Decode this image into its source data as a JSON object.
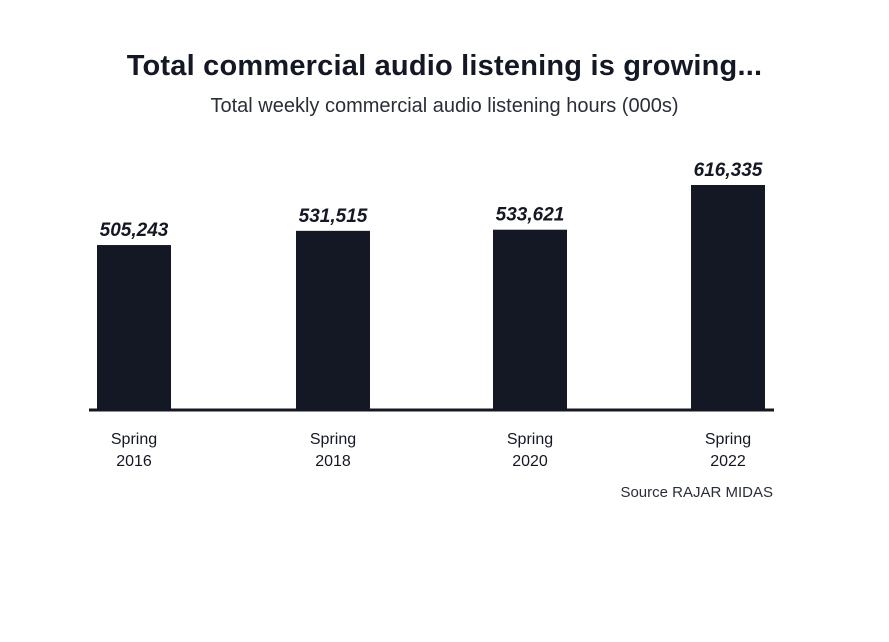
{
  "chart_data": {
    "type": "bar",
    "title": "Total commercial audio listening is growing...",
    "subtitle": "Total weekly commercial audio listening hours (000s)",
    "categories": [
      [
        "Spring",
        "2016"
      ],
      [
        "Spring",
        "2018"
      ],
      [
        "Spring",
        "2020"
      ],
      [
        "Spring",
        "2022"
      ]
    ],
    "values": [
      505243,
      531515,
      533621,
      616335
    ],
    "value_labels": [
      "505,243",
      "531,515",
      "533,621",
      "616,335"
    ],
    "source": "Source RAJAR MIDAS",
    "colors": {
      "bar": "#141824",
      "text": "#141824"
    },
    "grid": false,
    "legend": "none"
  }
}
